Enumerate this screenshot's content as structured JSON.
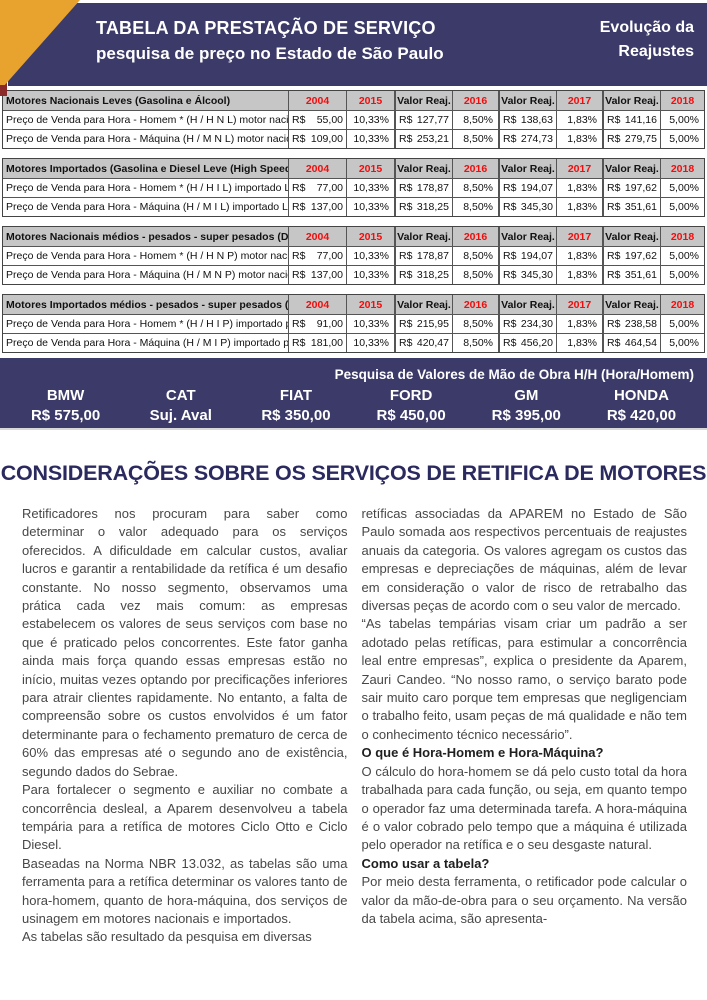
{
  "banner": {
    "title_line1": "TABELA DA PRESTAÇÃO DE SERVIÇO",
    "title_line2": "pesquisa de preço no Estado de São Paulo",
    "right_line1": "Evolução da",
    "right_line2": "Reajustes"
  },
  "colors": {
    "navy": "#3b3a69",
    "orange": "#e7a32e",
    "maroon": "#8a2a28",
    "year_red": "#f20d0d",
    "table_header_gray": "#c6c6c6",
    "heading_navy": "#2b2a5e"
  },
  "tables": [
    {
      "section": "Motores Nacionais Leves (Gasolina e Álcool)",
      "columns": [
        "2004",
        "2015",
        "Valor Reaj.",
        "2016",
        "Valor Reaj.",
        "2017",
        "Valor Reaj.",
        "2018"
      ],
      "rows": [
        {
          "label": "Preço de Venda para Hora - Homem * (H / H N L) motor nacional Leve",
          "values": [
            "R$ 55,00",
            "10,33%",
            "R$ 127,77",
            "8,50%",
            "R$ 138,63",
            "1,83%",
            "R$ 141,16",
            "5,00%"
          ]
        },
        {
          "label": "Preço de Venda para Hora - Máquina (H / M N L) motor nacional Leve",
          "values": [
            "R$ 109,00",
            "10,33%",
            "R$ 253,21",
            "8,50%",
            "R$ 274,73",
            "1,83%",
            "R$ 279,75",
            "5,00%"
          ]
        }
      ]
    },
    {
      "section": "Motores Importados (Gasolina e Diesel Leve (High Speed) )",
      "columns": [
        "2004",
        "2015",
        "Valor Reaj.",
        "2016",
        "Valor Reaj.",
        "2017",
        "Valor Reaj.",
        "2018"
      ],
      "rows": [
        {
          "label": "Preço de Venda para Hora - Homem * (H / H I L) importado Leve",
          "values": [
            "R$ 77,00",
            "10,33%",
            "R$ 178,87",
            "8,50%",
            "R$ 194,07",
            "1,83%",
            "R$ 197,62",
            "5,00%"
          ]
        },
        {
          "label": "Preço de Venda para Hora - Máquina (H / M I L) importado Leve",
          "values": [
            "R$ 137,00",
            "10,33%",
            "R$ 318,25",
            "8,50%",
            "R$ 345,30",
            "1,83%",
            "R$ 351,61",
            "5,00%"
          ]
        }
      ]
    },
    {
      "section": "Motores Nacionais médios - pesados - super pesados (Diesel)",
      "columns": [
        "2004",
        "2015",
        "Valor Reaj.",
        "2016",
        "Valor Reaj.",
        "2017",
        "Valor Reaj.",
        "2018"
      ],
      "rows": [
        {
          "label": "Preço de Venda para Hora - Homem * (H / H N P) motor nacional pesado",
          "values": [
            "R$ 77,00",
            "10,33%",
            "R$ 178,87",
            "8,50%",
            "R$ 194,07",
            "1,83%",
            "R$ 197,62",
            "5,00%"
          ]
        },
        {
          "label": "Preço de Venda para Hora - Máquina (H / M N P) motor nacional pesado",
          "values": [
            "R$ 137,00",
            "10,33%",
            "R$ 318,25",
            "8,50%",
            "R$ 345,30",
            "1,83%",
            "R$ 351,61",
            "5,00%"
          ]
        }
      ]
    },
    {
      "section": "Motores Importados médios - pesados - super pesados (Diesel)",
      "columns": [
        "2004",
        "2015",
        "Valor Reaj.",
        "2016",
        "Valor Reaj.",
        "2017",
        "Valor Reaj.",
        "2018"
      ],
      "rows": [
        {
          "label": "Preço de Venda para Hora - Homem * (H / H I P) importado pesado",
          "values": [
            "R$ 91,00",
            "10,33%",
            "R$ 215,95",
            "8,50%",
            "R$ 234,30",
            "1,83%",
            "R$ 238,58",
            "5,00%"
          ]
        },
        {
          "label": "Preço de Venda para Hora - Máquina (H / M I P) importado pesado",
          "values": [
            "R$ 181,00",
            "10,33%",
            "R$ 420,47",
            "8,50%",
            "R$ 456,20",
            "1,83%",
            "R$ 464,54",
            "5,00%"
          ]
        }
      ]
    }
  ],
  "labor_bar": {
    "title": "Pesquisa de Valores de Mão de Obra H/H (Hora/Homem)",
    "brands": [
      {
        "name": "BMW",
        "value": "R$ 575,00"
      },
      {
        "name": "CAT",
        "value": "Suj. Aval"
      },
      {
        "name": "FIAT",
        "value": "R$ 350,00"
      },
      {
        "name": "FORD",
        "value": "R$ 450,00"
      },
      {
        "name": "GM",
        "value": "R$ 395,00"
      },
      {
        "name": "HONDA",
        "value": "R$ 420,00"
      }
    ]
  },
  "article": {
    "heading": "CONSIDERAÇÕES SOBRE OS SERVIÇOS DE RETIFICA DE MOTORES",
    "left_column": [
      {
        "type": "p",
        "text": "Retificadores nos procuram para saber como determinar o valor adequado para os serviços oferecidos. A dificuldade em calcular custos, avaliar lucros e garantir a rentabilidade da retífica é um desafio constante. No nosso segmento, observamos uma prática cada vez mais comum: as empresas estabelecem os valores de seus serviços com base no que é praticado pelos concorrentes. Este fator ganha ainda mais força quando essas empresas estão no início, muitas vezes optando por precificações inferiores para atrair clientes rapidamente. No entanto, a falta de compreensão sobre os custos envolvidos é um fator determinante para o fechamento prematuro de cerca de 60% das empresas até o segundo ano de existência, segundo dados do Sebrae."
      },
      {
        "type": "p",
        "text": "Para fortalecer o segmento e auxiliar no combate a concorrência desleal, a Aparem desenvolveu a tabela tempária para a retífica de motores Ciclo Otto e Ciclo Diesel."
      },
      {
        "type": "p",
        "text": "Baseadas na Norma NBR 13.032, as tabelas são uma ferramenta para a retífica determinar os valores tanto de hora-homem, quanto de hora-máquina, dos serviços de usinagem em motores nacionais e importados."
      },
      {
        "type": "p",
        "text": "As tabelas são resultado da pesquisa em diversas"
      }
    ],
    "right_column": [
      {
        "type": "p",
        "text": "retíficas associadas da APAREM no Estado de São Paulo somada aos respectivos percentuais de reajustes anuais da categoria. Os valores agregam os custos das empresas e depreciações de máquinas, além de levar em consideração o valor de risco de retrabalho das diversas peças de acordo com o seu valor de mercado."
      },
      {
        "type": "p",
        "text": "“As tabelas tempárias visam criar um padrão a ser adotado pelas retíficas, para estimular a concorrência leal entre empresas”, explica o presidente da Aparem, Zauri Candeo. “No nosso ramo, o serviço barato pode sair muito caro porque tem empresas que negligenciam o trabalho feito, usam peças de má qualidade e não tem o conhecimento técnico necessário”."
      },
      {
        "type": "h",
        "text": "O que é Hora-Homem e Hora-Máquina?"
      },
      {
        "type": "p",
        "text": "O cálculo do hora-homem se dá pelo custo total da hora trabalhada para cada função, ou seja, em quanto tempo o operador faz uma determinada tarefa. A hora-máquina é o valor cobrado pelo tempo que a máquina é utilizada pelo operador na retífica e o seu desgaste natural."
      },
      {
        "type": "h",
        "text": "Como usar a tabela?"
      },
      {
        "type": "p",
        "text": "Por meio desta ferramenta, o retificador pode calcular o valor da mão-de-obra para o seu orçamento. Na versão da tabela acima, são apresenta-"
      }
    ]
  }
}
